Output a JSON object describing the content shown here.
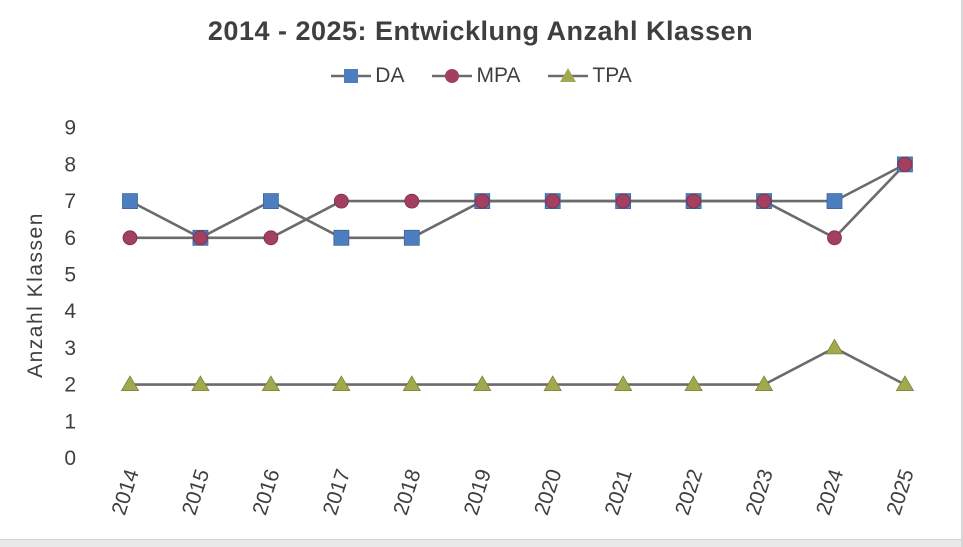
{
  "chart_data": {
    "type": "line",
    "title": "2014 - 2025: Entwicklung Anzahl Klassen",
    "ylabel": "Anzahl Klassen",
    "xlabel": "",
    "categories": [
      "2014",
      "2015",
      "2016",
      "2017",
      "2018",
      "2019",
      "2020",
      "2021",
      "2022",
      "2023",
      "2024",
      "2025"
    ],
    "series": [
      {
        "name": "DA",
        "marker": "square",
        "color": "#4d7ebf",
        "values": [
          7,
          6,
          7,
          6,
          6,
          7,
          7,
          7,
          7,
          7,
          7,
          8
        ]
      },
      {
        "name": "MPA",
        "marker": "circle",
        "color": "#a33f5f",
        "values": [
          6,
          6,
          6,
          7,
          7,
          7,
          7,
          7,
          7,
          7,
          6,
          8
        ]
      },
      {
        "name": "TPA",
        "marker": "triangle",
        "color": "#a2a84e",
        "values": [
          2,
          2,
          2,
          2,
          2,
          2,
          2,
          2,
          2,
          2,
          3,
          2
        ]
      }
    ],
    "ylim": [
      0,
      9
    ],
    "yticks": [
      0,
      1,
      2,
      3,
      4,
      5,
      6,
      7,
      8,
      9
    ],
    "line_color": "#6b6b6b",
    "text_color": "#3f3f3f",
    "grid": false,
    "legend_position": "top"
  }
}
